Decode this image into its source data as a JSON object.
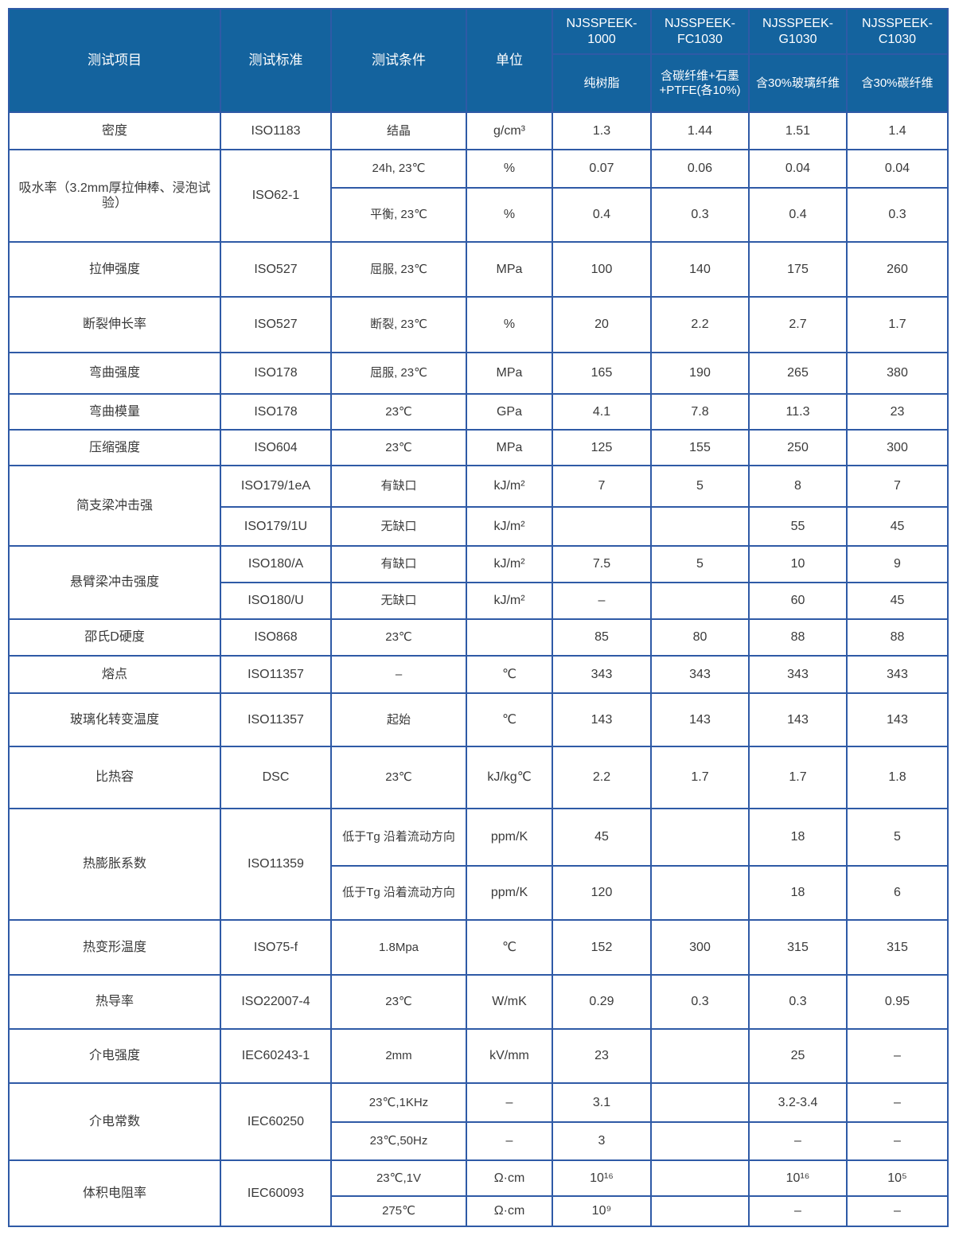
{
  "colors": {
    "header_bg": "#14639e",
    "border": "#2f5aa6",
    "text": "#3a3a3a"
  },
  "header": {
    "item": "测试项目",
    "standard": "测试标准",
    "condition": "测试条件",
    "unit": "单位",
    "models": [
      {
        "name": "NJSSPEEK-1000",
        "desc": "纯树脂"
      },
      {
        "name": "NJSSPEEK-FC1030",
        "desc": "含碳纤维+石墨+PTFE(各10%)"
      },
      {
        "name": "NJSSPEEK-G1030",
        "desc": "含30%玻璃纤维"
      },
      {
        "name": "NJSSPEEK-C1030",
        "desc": "含30%碳纤维"
      }
    ]
  },
  "rows": [
    {
      "item": "密度",
      "standard": "ISO1183",
      "sub": [
        {
          "condition": "结晶",
          "unit": "g/cm³",
          "values": [
            "1.3",
            "1.44",
            "1.51",
            "1.4"
          ]
        }
      ]
    },
    {
      "item": "吸水率（3.2mm厚拉伸棒、浸泡试验）",
      "standard": "ISO62-1",
      "sub": [
        {
          "condition": "24h, 23℃",
          "unit": "%",
          "values": [
            "0.07",
            "0.06",
            "0.04",
            "0.04"
          ]
        },
        {
          "condition": "平衡, 23℃",
          "unit": "%",
          "values": [
            "0.4",
            "0.3",
            "0.4",
            "0.3"
          ]
        }
      ]
    },
    {
      "item": "拉伸强度",
      "standard": "ISO527",
      "sub": [
        {
          "condition": "屈服, 23℃",
          "unit": "MPa",
          "values": [
            "100",
            "140",
            "175",
            "260"
          ]
        }
      ]
    },
    {
      "item": "断裂伸长率",
      "standard": "ISO527",
      "sub": [
        {
          "condition": "断裂, 23℃",
          "unit": "%",
          "values": [
            "20",
            "2.2",
            "2.7",
            "1.7"
          ]
        }
      ]
    },
    {
      "item": "弯曲强度",
      "standard": "ISO178",
      "sub": [
        {
          "condition": "屈服, 23℃",
          "unit": "MPa",
          "values": [
            "165",
            "190",
            "265",
            "380"
          ]
        }
      ]
    },
    {
      "item": "弯曲模量",
      "standard": "ISO178",
      "sub": [
        {
          "condition": "23℃",
          "unit": "GPa",
          "values": [
            "4.1",
            "7.8",
            "11.3",
            "23"
          ]
        }
      ]
    },
    {
      "item": "压缩强度",
      "standard": "ISO604",
      "sub": [
        {
          "condition": "23℃",
          "unit": "MPa",
          "values": [
            "125",
            "155",
            "250",
            "300"
          ]
        }
      ]
    },
    {
      "item": "简支梁冲击强",
      "sub": [
        {
          "standard": "ISO179/1eA",
          "condition": "有缺口",
          "unit": "kJ/m²",
          "values": [
            "7",
            "5",
            "8",
            "7"
          ]
        },
        {
          "standard": "ISO179/1U",
          "condition": "无缺口",
          "unit": "kJ/m²",
          "values": [
            "",
            "",
            "55",
            "45"
          ]
        }
      ]
    },
    {
      "item": "悬臂梁冲击强度",
      "sub": [
        {
          "standard": "ISO180/A",
          "condition": "有缺口",
          "unit": "kJ/m²",
          "values": [
            "7.5",
            "5",
            "10",
            "9"
          ]
        },
        {
          "standard": "ISO180/U",
          "condition": "无缺口",
          "unit": "kJ/m²",
          "values": [
            "–",
            "",
            "60",
            "45"
          ]
        }
      ]
    },
    {
      "item": "邵氏D硬度",
      "standard": "ISO868",
      "sub": [
        {
          "condition": "23℃",
          "unit": "",
          "values": [
            "85",
            "80",
            "88",
            "88"
          ]
        }
      ]
    },
    {
      "item": "熔点",
      "standard": "ISO11357",
      "sub": [
        {
          "condition": "–",
          "unit": "℃",
          "values": [
            "343",
            "343",
            "343",
            "343"
          ]
        }
      ]
    },
    {
      "item": "玻璃化转变温度",
      "standard": "ISO11357",
      "sub": [
        {
          "condition": "起始",
          "unit": "℃",
          "values": [
            "143",
            "143",
            "143",
            "143"
          ]
        }
      ]
    },
    {
      "item": "比热容",
      "standard": "DSC",
      "sub": [
        {
          "condition": "23℃",
          "unit": "kJ/kg℃",
          "values": [
            "2.2",
            "1.7",
            "1.7",
            "1.8"
          ]
        }
      ]
    },
    {
      "item": "热膨胀系数",
      "standard": "ISO11359",
      "sub": [
        {
          "condition": "低于Tg 沿着流动方向",
          "unit": "ppm/K",
          "values": [
            "45",
            "",
            "18",
            "5"
          ]
        },
        {
          "condition": "低于Tg 沿着流动方向",
          "unit": "ppm/K",
          "values": [
            "120",
            "",
            "18",
            "6"
          ]
        }
      ]
    },
    {
      "item": "热变形温度",
      "standard": "ISO75-f",
      "sub": [
        {
          "condition": "1.8Mpa",
          "unit": "℃",
          "values": [
            "152",
            "300",
            "315",
            "315"
          ]
        }
      ]
    },
    {
      "item": "热导率",
      "standard": "ISO22007-4",
      "sub": [
        {
          "condition": "23℃",
          "unit": "W/mK",
          "values": [
            "0.29",
            "0.3",
            "0.3",
            "0.95"
          ]
        }
      ]
    },
    {
      "item": "介电强度",
      "standard": "IEC60243-1",
      "sub": [
        {
          "condition": "2mm",
          "unit": "kV/mm",
          "values": [
            "23",
            "",
            "25",
            "–"
          ]
        }
      ]
    },
    {
      "item": "介电常数",
      "standard": "IEC60250",
      "sub": [
        {
          "condition": "23℃,1KHz",
          "unit": "–",
          "values": [
            "3.1",
            "",
            "3.2-3.4",
            "–"
          ]
        },
        {
          "condition": "23℃,50Hz",
          "unit": "–",
          "values": [
            "3",
            "",
            "–",
            "–"
          ]
        }
      ]
    },
    {
      "item": "体积电阻率",
      "standard": "IEC60093",
      "sub": [
        {
          "condition": "23℃,1V",
          "unit": "Ω·cm",
          "values": [
            "10¹⁶",
            "",
            "10¹⁶",
            "10⁵"
          ]
        },
        {
          "condition": "275℃",
          "unit": "Ω·cm",
          "values": [
            "10⁹",
            "",
            "–",
            "–"
          ]
        }
      ]
    }
  ]
}
